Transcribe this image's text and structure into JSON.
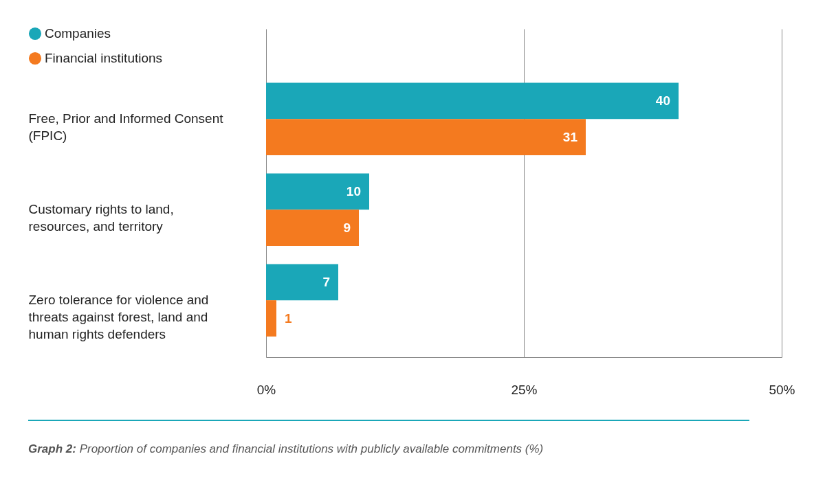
{
  "chart_data": {
    "type": "bar",
    "orientation": "horizontal",
    "categories": [
      "Free, Prior and Informed Consent (FPIC)",
      "Customary rights to land, resources, and territory",
      "Zero tolerance for violence and threats against forest, land and human rights defenders"
    ],
    "series": [
      {
        "name": "Companies",
        "color": "#1aa7b8",
        "values": [
          40,
          10,
          7
        ]
      },
      {
        "name": "Financial institutions",
        "color": "#f47a1f",
        "values": [
          31,
          9,
          1
        ]
      }
    ],
    "xlim": [
      0,
      50
    ],
    "xticks": [
      {
        "value": 0,
        "label": "0%"
      },
      {
        "value": 25,
        "label": "25%"
      },
      {
        "value": 50,
        "label": "50%"
      }
    ],
    "grid": "x",
    "legend": "top left",
    "data_labels": true,
    "annotations": [
      "Graph 2: Proportion of companies and financial institutions with publicly available commitments (%)"
    ]
  }
}
